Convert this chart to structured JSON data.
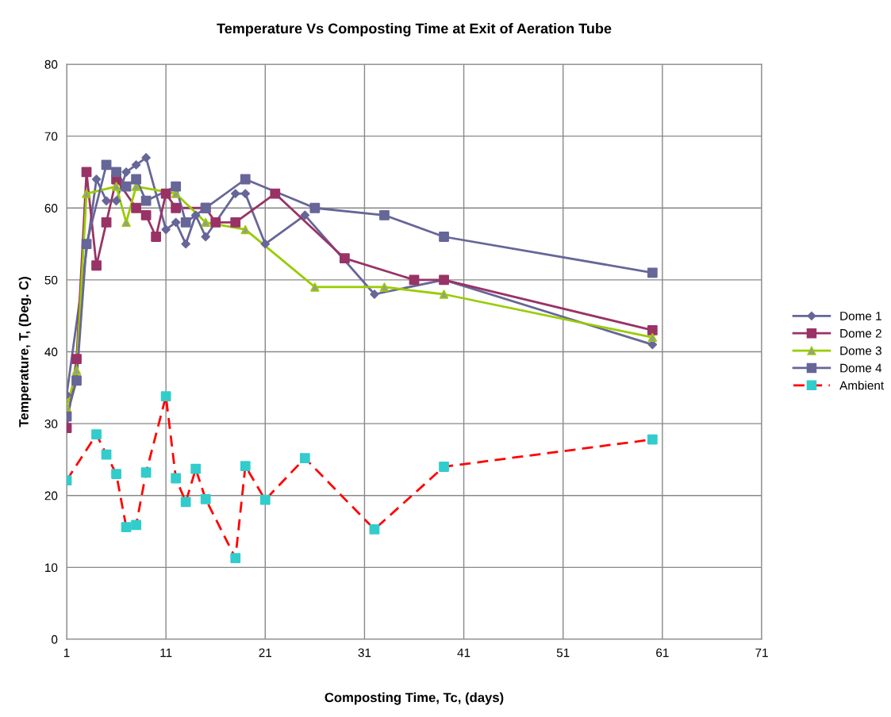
{
  "chart_data": {
    "type": "line",
    "title": "Temperature Vs Composting Time at Exit of Aeration Tube",
    "xlabel": "Composting Time, Tc, (days)",
    "ylabel": "Temperature, T, (Deg. C)",
    "xlim": [
      1,
      71
    ],
    "xticks": [
      1,
      11,
      21,
      31,
      41,
      51,
      61,
      71
    ],
    "ylim": [
      0,
      80
    ],
    "yticks": [
      0,
      10,
      20,
      30,
      40,
      50,
      60,
      70,
      80
    ],
    "grid": true,
    "legend": "right",
    "line_style": "solid",
    "series": [
      {
        "name": "Dome 1",
        "color": "#666699",
        "marker": "diamond",
        "x": [
          1,
          4,
          5,
          6,
          7,
          8,
          9,
          11,
          12,
          13,
          14,
          15,
          18,
          19,
          21,
          25,
          32,
          39,
          60
        ],
        "values": [
          34,
          64,
          61,
          61,
          65,
          66,
          67,
          57,
          58,
          55,
          59,
          56,
          62,
          62,
          55,
          59,
          48,
          50,
          41
        ]
      },
      {
        "name": "Dome 2",
        "color": "#993366",
        "marker": "square",
        "x": [
          1,
          2,
          3,
          4,
          5,
          6,
          8,
          9,
          10,
          11,
          12,
          15,
          16,
          18,
          22,
          29,
          36,
          39,
          60
        ],
        "values": [
          29.4,
          39,
          65,
          52,
          58,
          64,
          60,
          59,
          56,
          62,
          60,
          60,
          58,
          58,
          62,
          53,
          50,
          50,
          43
        ]
      },
      {
        "name": "Dome 3",
        "color": "#99cc00",
        "colors": [
          "#999999",
          "#999999",
          "#999999",
          "#999999",
          "#999999",
          "#999999",
          "#999999",
          "#999999",
          "#999999",
          "#999999",
          "#999999",
          "#999999",
          "#999999"
        ],
        "marker": "triangle",
        "x": [
          1,
          2,
          3,
          6,
          7,
          8,
          12,
          15,
          19,
          26,
          33,
          39,
          60
        ],
        "values": [
          32.3,
          37.4,
          62,
          63,
          58,
          63,
          62,
          58,
          57,
          49,
          49,
          48,
          42
        ]
      },
      {
        "name": "Dome 4",
        "color": "#666699",
        "marker": "square",
        "x": [
          1,
          2,
          3,
          5,
          6,
          7,
          8,
          9,
          12,
          13,
          15,
          19,
          26,
          33,
          39,
          60
        ],
        "values": [
          31,
          36,
          55,
          66,
          65,
          63,
          64,
          61,
          63,
          58,
          60,
          64,
          60,
          59,
          56,
          51
        ]
      },
      {
        "name": "Ambient",
        "color": "#ff0000",
        "line_style": "dashed",
        "colors": [
          "#33cccc",
          "#33cccc",
          "#33cccc",
          "#33cccc",
          "#33cccc",
          "#33cccc",
          "#33cccc",
          "#33cccc",
          "#33cccc",
          "#33cccc",
          "#33cccc",
          "#33cccc",
          "#33cccc",
          "#33cccc",
          "#33cccc",
          "#33cccc",
          "#33cccc",
          "#33cccc",
          "#33cccc"
        ],
        "marker": "square",
        "x": [
          1,
          4,
          5,
          6,
          7,
          8,
          9,
          11,
          12,
          13,
          14,
          15,
          18,
          19,
          21,
          25,
          32,
          39,
          60
        ],
        "values": [
          22.1,
          28.5,
          25.7,
          23.0,
          15.6,
          15.9,
          23.2,
          33.8,
          22.4,
          19.1,
          23.7,
          19.5,
          11.3,
          24.1,
          19.4,
          25.2,
          15.3,
          24.0,
          27.8
        ]
      }
    ]
  }
}
